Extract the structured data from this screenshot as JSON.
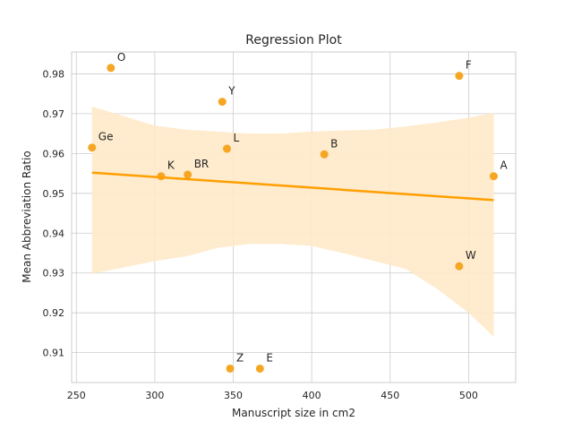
{
  "chart_data": {
    "type": "scatter",
    "title": "Regression Plot",
    "xlabel": "Manuscript size in cm2",
    "ylabel": "Mean Abbreviation Ratio",
    "xlim": [
      247,
      530
    ],
    "ylim": [
      0.9025,
      0.9855
    ],
    "xticks": [
      250,
      300,
      350,
      400,
      450,
      500
    ],
    "yticks": [
      0.91,
      0.92,
      0.93,
      0.94,
      0.95,
      0.96,
      0.97,
      0.98
    ],
    "grid": true,
    "points": [
      {
        "label": "O",
        "x": 272,
        "y": 0.9815
      },
      {
        "label": "F",
        "x": 494,
        "y": 0.9795
      },
      {
        "label": "Y",
        "x": 343,
        "y": 0.973
      },
      {
        "label": "Ge",
        "x": 260,
        "y": 0.9615
      },
      {
        "label": "L",
        "x": 346,
        "y": 0.9612
      },
      {
        "label": "B",
        "x": 408,
        "y": 0.9598
      },
      {
        "label": "K",
        "x": 304,
        "y": 0.9543
      },
      {
        "label": "BR",
        "x": 321,
        "y": 0.9547
      },
      {
        "label": "A",
        "x": 516,
        "y": 0.9543
      },
      {
        "label": "W",
        "x": 494,
        "y": 0.9317
      },
      {
        "label": "Z",
        "x": 348,
        "y": 0.906
      },
      {
        "label": "E",
        "x": 367,
        "y": 0.906
      }
    ],
    "regression": {
      "x": [
        260,
        516
      ],
      "y": [
        0.9552,
        0.9483
      ]
    },
    "confidence_band": {
      "x": [
        260,
        300,
        320,
        340,
        360,
        380,
        400,
        420,
        440,
        460,
        480,
        500,
        516
      ],
      "upper": [
        0.9718,
        0.967,
        0.966,
        0.9655,
        0.965,
        0.965,
        0.9655,
        0.9658,
        0.966,
        0.9668,
        0.9678,
        0.969,
        0.9702
      ],
      "lower": [
        0.9298,
        0.933,
        0.9342,
        0.9363,
        0.9373,
        0.9373,
        0.9368,
        0.935,
        0.933,
        0.931,
        0.926,
        0.92,
        0.914
      ]
    },
    "colors": {
      "points": "#f5a623",
      "line": "#ff9f00",
      "band": "#ffe9c8"
    }
  }
}
